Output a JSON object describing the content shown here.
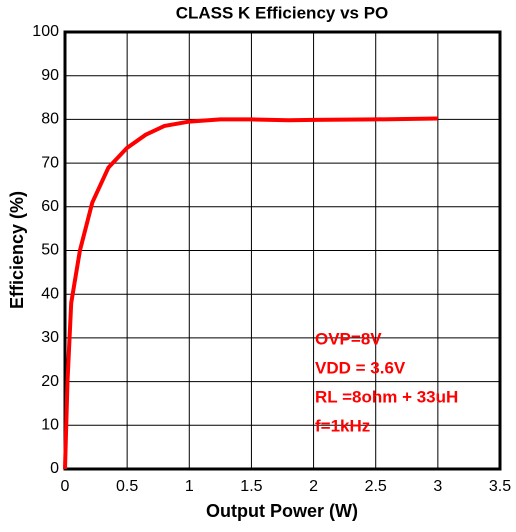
{
  "chart_data": {
    "type": "line",
    "title": "CLASS K Efficiency vs PO",
    "x_label": "Output Power (W)",
    "y_label": "Efficiency (%)",
    "x": [
      0,
      0.02,
      0.05,
      0.12,
      0.22,
      0.35,
      0.5,
      0.65,
      0.8,
      1.0,
      1.25,
      1.5,
      1.8,
      2.0,
      2.5,
      3.0
    ],
    "series": [
      {
        "name": "Efficiency",
        "color": "#ff0000",
        "values": [
          0,
          20,
          38,
          50,
          61,
          69,
          73.5,
          76.5,
          78.5,
          79.5,
          80,
          80,
          79.8,
          79.9,
          80,
          80.2
        ]
      }
    ],
    "xlim": [
      0,
      3.5
    ],
    "xticks": [
      0,
      0.5,
      1,
      1.5,
      2,
      2.5,
      3,
      3.5
    ],
    "ylim": [
      0,
      100
    ],
    "yticks": [
      0,
      10,
      20,
      30,
      40,
      50,
      60,
      70,
      80,
      90,
      100
    ],
    "grid": true,
    "annotations": [
      "OVP=8V",
      "VDD = 3.6V",
      "RL =8ohm + 33uH",
      "f=1kHz"
    ],
    "annotation_color": "#ff0000"
  }
}
